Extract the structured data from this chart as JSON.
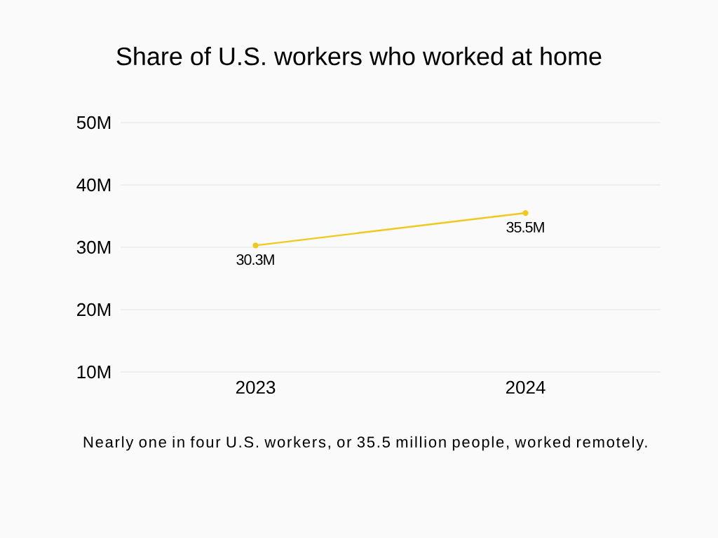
{
  "chart_data": {
    "type": "line",
    "title": "Share of U.S. workers who worked at home",
    "categories": [
      "2023",
      "2024"
    ],
    "series": [
      {
        "color": "#f2c81c",
        "values": [
          30.3,
          35.5
        ],
        "value_labels": [
          "30.3M",
          "35.5M"
        ]
      }
    ],
    "ylim": [
      10,
      50
    ],
    "yticks": [
      {
        "value": 10,
        "label": "10M"
      },
      {
        "value": 20,
        "label": "20M"
      },
      {
        "value": 30,
        "label": "30M"
      },
      {
        "value": 40,
        "label": "40M"
      },
      {
        "value": 50,
        "label": "50M"
      }
    ],
    "grid": "y",
    "marker": "circle",
    "line_style": "solid",
    "annotations": [
      "Nearly one in four U.S. workers, or 35.5 million people, worked remotely."
    ]
  }
}
